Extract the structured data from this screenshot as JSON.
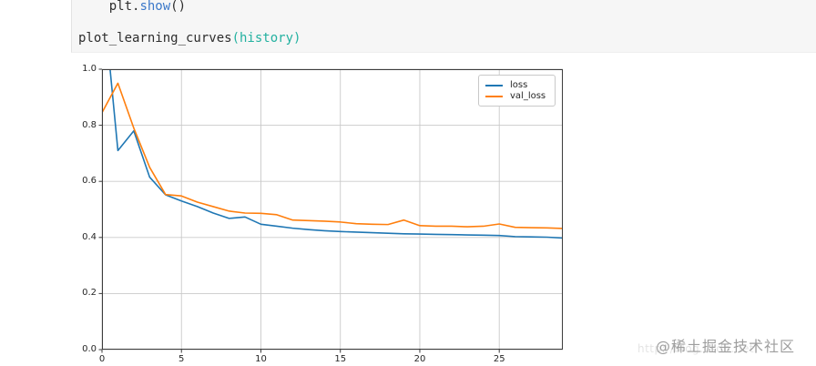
{
  "code_cell": {
    "lines": [
      {
        "tokens": [
          {
            "t": "    plt.",
            "c": "default"
          },
          {
            "t": "show",
            "c": "func"
          },
          {
            "t": "()",
            "c": "default"
          }
        ]
      },
      {
        "tokens": [
          {
            "t": "plot_learning_curves",
            "c": "default"
          },
          {
            "t": "(history)",
            "c": "param"
          }
        ]
      }
    ],
    "colors": {
      "default": "#2d2d2d",
      "func": "#3b78c9",
      "param": "#23b1a0"
    }
  },
  "chart_data": {
    "type": "line",
    "title": "",
    "xlabel": "",
    "ylabel": "",
    "x": [
      0,
      1,
      2,
      3,
      4,
      5,
      6,
      7,
      8,
      9,
      10,
      11,
      12,
      13,
      14,
      15,
      16,
      17,
      18,
      19,
      20,
      21,
      22,
      23,
      24,
      25,
      26,
      27,
      28,
      29
    ],
    "series": [
      {
        "name": "loss",
        "color": "#1f77b4",
        "values": [
          1.3,
          0.71,
          0.78,
          0.615,
          0.552,
          0.53,
          0.51,
          0.487,
          0.468,
          0.473,
          0.447,
          0.44,
          0.433,
          0.428,
          0.424,
          0.421,
          0.419,
          0.417,
          0.415,
          0.413,
          0.412,
          0.411,
          0.41,
          0.409,
          0.408,
          0.407,
          0.403,
          0.402,
          0.401,
          0.398
        ]
      },
      {
        "name": "val_loss",
        "color": "#ff7f0e",
        "values": [
          0.845,
          0.95,
          0.79,
          0.65,
          0.553,
          0.548,
          0.526,
          0.51,
          0.494,
          0.487,
          0.486,
          0.481,
          0.462,
          0.46,
          0.458,
          0.455,
          0.449,
          0.447,
          0.446,
          0.462,
          0.442,
          0.44,
          0.44,
          0.438,
          0.44,
          0.448,
          0.436,
          0.435,
          0.434,
          0.432
        ]
      }
    ],
    "xlim": [
      0,
      29
    ],
    "ylim": [
      0,
      1
    ],
    "xticks": {
      "values": [
        0,
        5,
        10,
        15,
        20,
        25
      ],
      "labels": [
        "0",
        "5",
        "10",
        "15",
        "20",
        "25"
      ]
    },
    "yticks": {
      "values": [
        0,
        0.2,
        0.4,
        0.6,
        0.8,
        1.0
      ],
      "labels": [
        "0.0",
        "0.2",
        "0.4",
        "0.6",
        "0.8",
        "1.0"
      ]
    },
    "grid": true,
    "legend_position": "upper right",
    "grid_color": "#c9c9c9",
    "spine_color": "#3c3c3c",
    "tick_label_color": "#262626"
  },
  "watermark": {
    "text": "@稀土掘金技术社区",
    "color": "#9e9e9e",
    "faint_text": "http://blog.csdn.net"
  }
}
